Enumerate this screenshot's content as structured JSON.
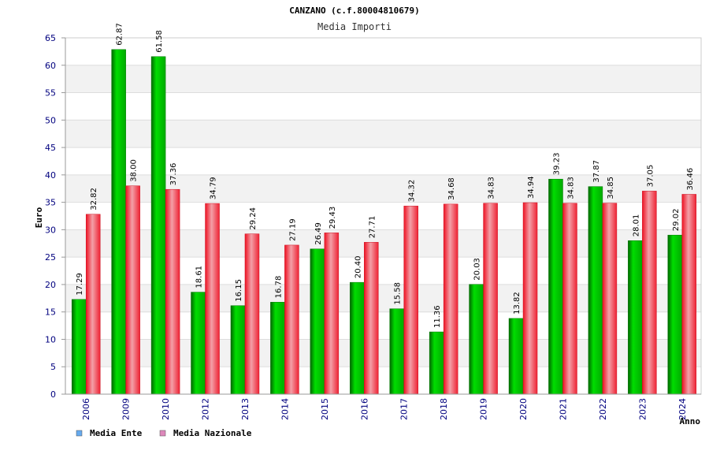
{
  "chart_data": {
    "type": "bar",
    "title": "CANZANO (c.f.80004810679)",
    "subtitle": "Media Importi",
    "xlabel": "Anno",
    "ylabel": "Euro",
    "ylim": [
      0,
      65
    ],
    "ytick_step": 5,
    "grid": true,
    "legend_position": "bottom-left",
    "categories": [
      "2006",
      "2009",
      "2010",
      "2012",
      "2013",
      "2014",
      "2015",
      "2016",
      "2017",
      "2018",
      "2019",
      "2020",
      "2021",
      "2022",
      "2023",
      "2024"
    ],
    "series": [
      {
        "name": "Media Ente",
        "legend_color": "#66aaee",
        "bar_color": "#00bb00",
        "values": [
          17.29,
          62.87,
          61.58,
          18.61,
          16.15,
          16.78,
          26.49,
          20.4,
          15.58,
          11.36,
          20.03,
          13.82,
          39.23,
          37.87,
          28.01,
          29.02
        ],
        "labels": [
          "17.29",
          "62.87",
          "61.58",
          "18.61",
          "16.15",
          "16.78",
          "26.49",
          "20.40",
          "15.58",
          "11.36",
          "20.03",
          "13.82",
          "39.23",
          "37.87",
          "28.01",
          "29.02"
        ]
      },
      {
        "name": "Media Nazionale",
        "legend_color": "#dd88bb",
        "bar_color": "#ee3344",
        "values": [
          32.82,
          38.0,
          37.36,
          34.79,
          29.24,
          27.19,
          29.43,
          27.71,
          34.32,
          34.68,
          34.83,
          34.94,
          34.83,
          34.85,
          37.05,
          36.46
        ],
        "labels": [
          "32.82",
          "38.00",
          "37.36",
          "34.79",
          "29.24",
          "27.19",
          "29.43",
          "27.71",
          "34.32",
          "34.68",
          "34.83",
          "34.94",
          "34.83",
          "34.85",
          "37.05",
          "36.46"
        ]
      }
    ]
  }
}
